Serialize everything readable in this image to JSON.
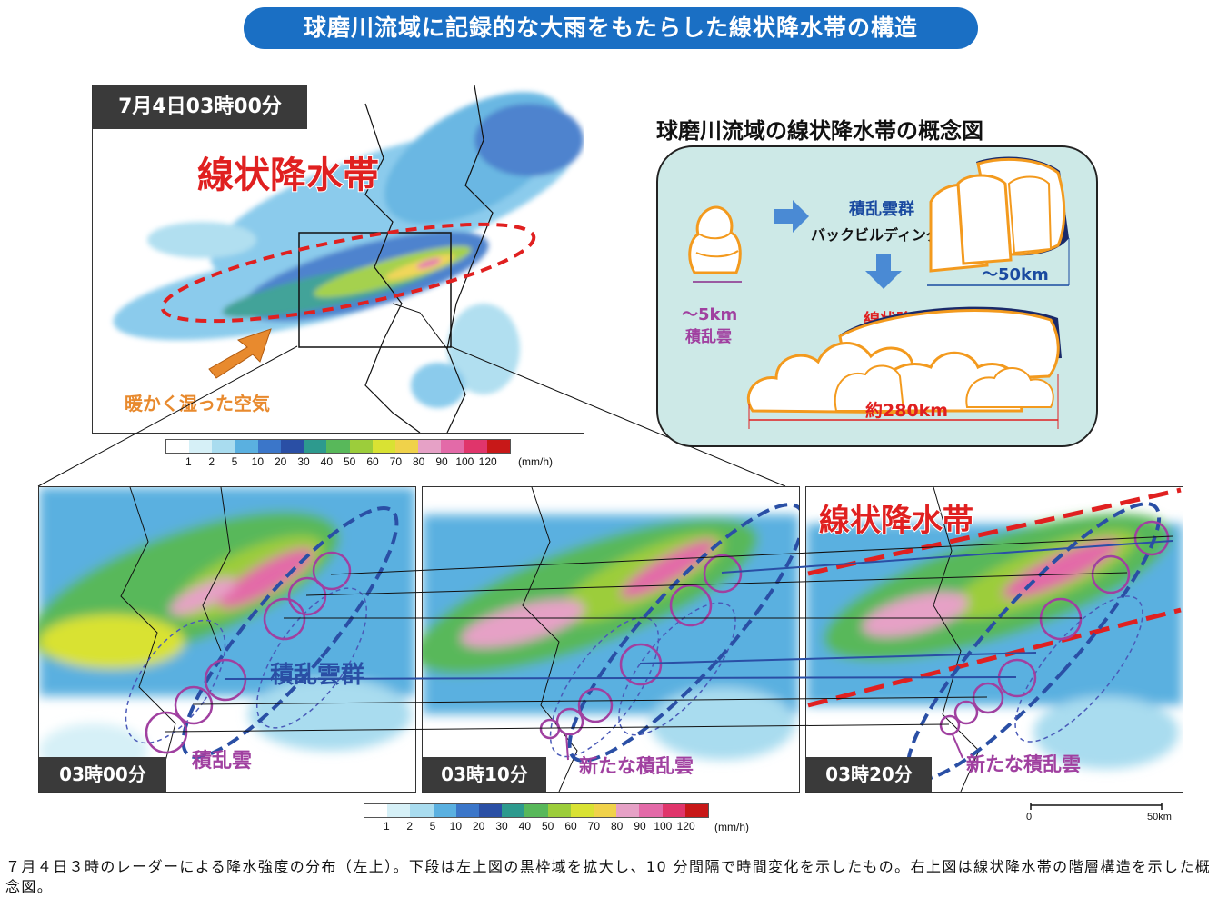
{
  "title": "球磨川流域に記録的な大雨をもたらした線状降水帯の構造",
  "top_map": {
    "time": "7月4日03時00分",
    "band_label": "線状降水帯",
    "air_label": "暖かく湿った空気"
  },
  "colorbar": {
    "ticks": [
      "1",
      "2",
      "5",
      "10",
      "20",
      "30",
      "40",
      "50",
      "60",
      "70",
      "80",
      "90",
      "100",
      "120"
    ],
    "unit": "(mm/h)",
    "colors": [
      "#ffffff",
      "#d6f0f7",
      "#a9dcef",
      "#5ab0e0",
      "#3b76c9",
      "#2a4fa5",
      "#2d9a8e",
      "#58b85a",
      "#9ccd3b",
      "#d9e233",
      "#f0d24a",
      "#e6a1c6",
      "#e36aa8",
      "#e0356b",
      "#c81818"
    ]
  },
  "concept": {
    "title": "球磨川流域の線状降水帯の概念図",
    "cluster_label": "積乱雲群",
    "backbuilding_label": "バックビルディング型",
    "size_small": "～5km",
    "cell_label": "積乱雲",
    "size_mid": "～50km",
    "band_label": "線状降水帯",
    "size_large": "約280km"
  },
  "bottom_panels": [
    {
      "time": "03時00分",
      "label_a": "積乱雲群",
      "label_b": "積乱雲"
    },
    {
      "time": "03時10分",
      "label_a": "新たな積乱雲"
    },
    {
      "time": "03時20分",
      "label_a": "線状降水帯",
      "label_b": "新たな積乱雲"
    }
  ],
  "scalebar": {
    "start": "0",
    "end": "50km"
  },
  "caption": "７月４日３時のレーダーによる降水強度の分布（左上）。下段は左上図の黒枠域を拡大し、10 分間隔で時間変化を示したもの。右上図は線状降水帯の階層構造を示した概念図。"
}
